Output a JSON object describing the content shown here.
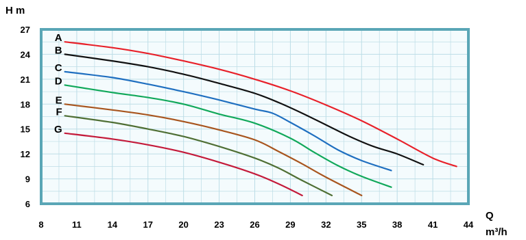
{
  "chart_data": {
    "type": "line",
    "title": "",
    "ylabel": "H m",
    "xlabel_line1": "Q",
    "xlabel_line2": "m³/h",
    "xlim": [
      8,
      44
    ],
    "ylim": [
      6,
      27
    ],
    "xticks": [
      8,
      11,
      14,
      17,
      20,
      23,
      26,
      29,
      32,
      35,
      38,
      41,
      44
    ],
    "yticks": [
      6,
      9,
      12,
      15,
      18,
      21,
      24,
      27
    ],
    "grid": true,
    "legend": "inline-left",
    "series": [
      {
        "name": "A",
        "color": "#e8212a",
        "x": [
          10,
          14,
          17,
          20,
          23,
          26,
          29,
          32,
          35,
          38,
          41,
          43
        ],
        "y": [
          25.5,
          24.8,
          24.1,
          23.2,
          22.2,
          21.0,
          19.6,
          17.9,
          16.0,
          13.8,
          11.5,
          10.5
        ]
      },
      {
        "name": "B",
        "color": "#111111",
        "x": [
          10,
          14,
          17,
          20,
          23,
          26,
          28,
          30,
          32,
          34,
          36,
          38,
          40.2
        ],
        "y": [
          24.0,
          23.2,
          22.5,
          21.6,
          20.5,
          19.3,
          18.2,
          16.9,
          15.5,
          14.1,
          12.9,
          12.0,
          10.7
        ]
      },
      {
        "name": "C",
        "color": "#1f6fc0",
        "x": [
          10,
          14,
          17,
          20,
          23,
          26,
          27.5,
          29,
          31,
          33,
          35,
          37.5
        ],
        "y": [
          21.9,
          21.2,
          20.4,
          19.5,
          18.5,
          17.4,
          16.9,
          15.8,
          14.2,
          12.5,
          11.2,
          10.0
        ]
      },
      {
        "name": "D",
        "color": "#11a85a",
        "x": [
          10,
          14,
          17,
          20,
          23,
          26,
          29,
          31,
          33,
          35,
          37.5
        ],
        "y": [
          20.3,
          19.4,
          18.8,
          18.0,
          16.8,
          15.7,
          13.9,
          12.2,
          10.6,
          9.3,
          8.0
        ]
      },
      {
        "name": "E",
        "color": "#a8551e",
        "x": [
          10,
          14,
          17,
          20,
          23,
          26,
          28,
          30,
          32,
          35
        ],
        "y": [
          18.0,
          17.3,
          16.7,
          15.9,
          14.9,
          13.7,
          12.3,
          10.8,
          9.2,
          7.0
        ]
      },
      {
        "name": "F",
        "color": "#4f6f34",
        "x": [
          10,
          14,
          17,
          20,
          23,
          26,
          28,
          30,
          32.5
        ],
        "y": [
          16.6,
          15.8,
          15.0,
          14.1,
          12.9,
          11.5,
          10.3,
          8.8,
          7.0
        ]
      },
      {
        "name": "G",
        "color": "#c41a3a",
        "x": [
          10,
          14,
          17,
          20,
          23,
          26,
          28,
          30
        ],
        "y": [
          14.5,
          13.8,
          13.1,
          12.2,
          11.0,
          9.6,
          8.4,
          7.0
        ]
      }
    ],
    "colors": {
      "frame": "#5aa6b6",
      "plot_bg": "#f4fbfd",
      "grid": "#bcdde6"
    }
  }
}
